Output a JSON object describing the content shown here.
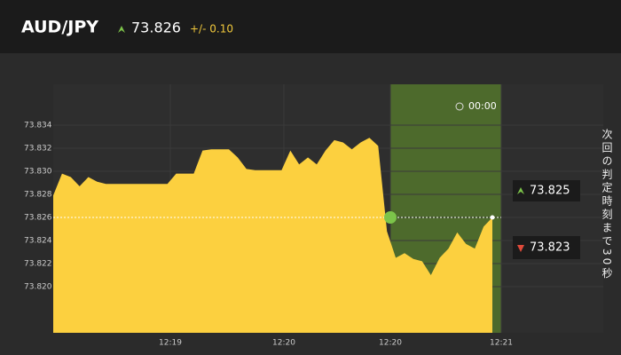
{
  "header": {
    "pair": "AUD/JPY",
    "price": "73.826",
    "range": "+/- 0.10"
  },
  "chart_data": {
    "type": "area",
    "color": "#fcd03f",
    "values": [
      73.8279,
      73.8298,
      73.8295,
      73.8287,
      73.8295,
      73.8291,
      73.8289,
      73.8289,
      73.8289,
      73.8289,
      73.8289,
      73.8289,
      73.8289,
      73.8289,
      73.8298,
      73.8298,
      73.8298,
      73.8318,
      73.8319,
      73.8319,
      73.8319,
      73.8312,
      73.8302,
      73.8301,
      73.8301,
      73.8301,
      73.8301,
      73.8318,
      73.8306,
      73.8312,
      73.8306,
      73.8318,
      73.8327,
      73.8325,
      73.8319,
      73.8325,
      73.8329,
      73.8322,
      73.8248,
      73.8225,
      73.8229,
      73.8224,
      73.8222,
      73.821,
      73.8225,
      73.8233,
      73.8247,
      73.8237,
      73.8233,
      73.8252,
      73.826
    ],
    "reference": 73.826,
    "ylim": [
      73.816,
      73.838
    ],
    "yticks": [
      {
        "value": 73.82,
        "label": "73.820"
      },
      {
        "value": 73.822,
        "label": "73.822"
      },
      {
        "value": 73.824,
        "label": "73.824"
      },
      {
        "value": 73.826,
        "label": "73.826"
      },
      {
        "value": 73.828,
        "label": "73.828"
      },
      {
        "value": 73.83,
        "label": "73.830"
      },
      {
        "value": 73.832,
        "label": "73.832"
      },
      {
        "value": 73.834,
        "label": "73.834"
      }
    ],
    "x_labels": [
      "12:19",
      "12:20",
      "12:20",
      "12:21"
    ],
    "timer": "00:00",
    "high_box": "73.825",
    "low_box": "73.823",
    "notice": "次回の判定時刻まで30秒"
  }
}
